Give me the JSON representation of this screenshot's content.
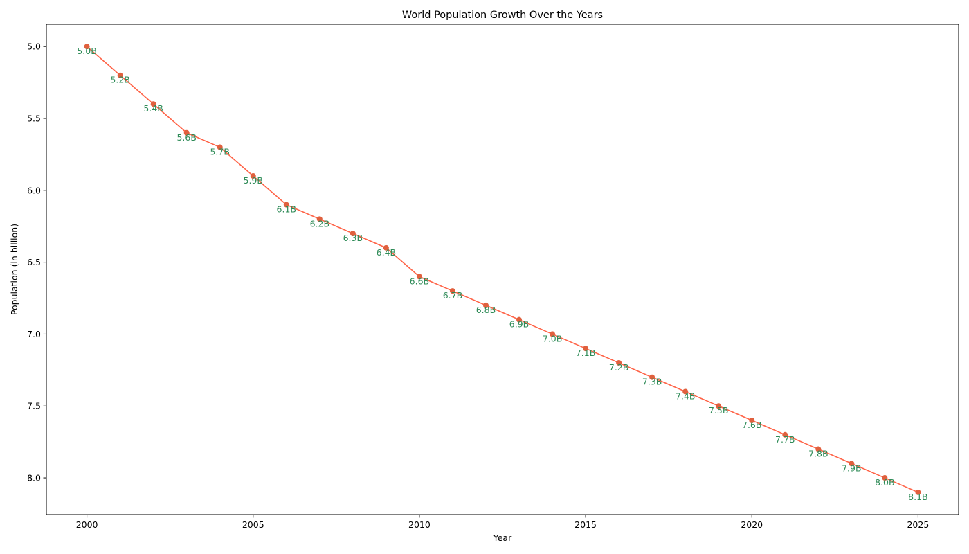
{
  "chart_data": {
    "type": "line",
    "title": "World Population Growth Over the Years",
    "xlabel": "Year",
    "ylabel": "Population (in billion)",
    "x": [
      2000,
      2001,
      2002,
      2003,
      2004,
      2005,
      2006,
      2007,
      2008,
      2009,
      2010,
      2011,
      2012,
      2013,
      2014,
      2015,
      2016,
      2017,
      2018,
      2019,
      2020,
      2021,
      2022,
      2023,
      2024,
      2025
    ],
    "series": [
      {
        "values": [
          5.0,
          5.2,
          5.4,
          5.6,
          5.7,
          5.9,
          6.1,
          6.2,
          6.3,
          6.4,
          6.6,
          6.7,
          6.8,
          6.9,
          7.0,
          7.1,
          7.2,
          7.3,
          7.4,
          7.5,
          7.6,
          7.7,
          7.8,
          7.9,
          8.0,
          8.1
        ],
        "data_labels": [
          "5.0B",
          "5.2B",
          "5.4B",
          "5.6B",
          "5.7B",
          "5.9B",
          "6.1B",
          "6.2B",
          "6.3B",
          "6.4B",
          "6.6B",
          "6.7B",
          "6.8B",
          "6.9B",
          "7.0B",
          "7.1B",
          "7.2B",
          "7.3B",
          "7.4B",
          "7.5B",
          "7.6B",
          "7.7B",
          "7.8B",
          "7.9B",
          "8.0B",
          "8.1B"
        ],
        "line_color": "#ff6347",
        "marker_color": "#e0603e",
        "label_color": "#2e8b57"
      }
    ],
    "xlim": [
      1998.78,
      2026.22
    ],
    "ylim": [
      8.255,
      4.845
    ],
    "y_axis_inverted": true,
    "x_ticks": [
      2000,
      2005,
      2010,
      2015,
      2020,
      2025
    ],
    "y_ticks": [
      5.0,
      5.5,
      6.0,
      6.5,
      7.0,
      7.5,
      8.0
    ],
    "y_tick_labels": [
      "5.0",
      "5.5",
      "6.0",
      "6.5",
      "7.0",
      "7.5",
      "8.0"
    ],
    "grid": false,
    "legend": false
  }
}
